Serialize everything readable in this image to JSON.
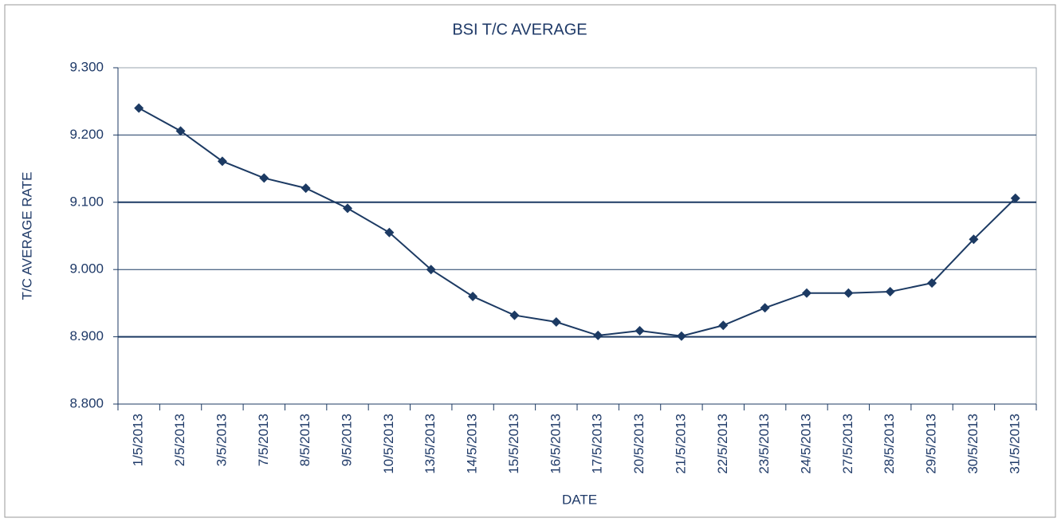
{
  "chart_data": {
    "type": "line",
    "title": "BSI T/C AVERAGE",
    "x_label": "DATE",
    "y_label": "T/C AVERAGE RATE",
    "categories": [
      "1/5/2013",
      "2/5/2013",
      "3/5/2013",
      "7/5/2013",
      "8/5/2013",
      "9/5/2013",
      "10/5/2013",
      "13/5/2013",
      "14/5/2013",
      "15/5/2013",
      "16/5/2013",
      "17/5/2013",
      "20/5/2013",
      "21/5/2013",
      "22/5/2013",
      "23/5/2013",
      "24/5/2013",
      "27/5/2013",
      "28/5/2013",
      "29/5/2013",
      "30/5/2013",
      "31/5/2013"
    ],
    "values": [
      9.24,
      9.206,
      9.161,
      9.136,
      9.121,
      9.091,
      9.055,
      9.0,
      8.96,
      8.932,
      8.922,
      8.902,
      8.909,
      8.901,
      8.917,
      8.943,
      8.965,
      8.965,
      8.967,
      8.98,
      9.045,
      9.106
    ],
    "color": "#1c3a63",
    "ylim": [
      8.8,
      9.3
    ],
    "yticks": [
      {
        "value": 8.8,
        "label": "8.800"
      },
      {
        "value": 8.9,
        "label": "8.900"
      },
      {
        "value": 9.0,
        "label": "9.000"
      },
      {
        "value": 9.1,
        "label": "9.100"
      },
      {
        "value": 9.2,
        "label": "9.200"
      },
      {
        "value": 9.3,
        "label": "9.300"
      }
    ],
    "grid": true
  }
}
